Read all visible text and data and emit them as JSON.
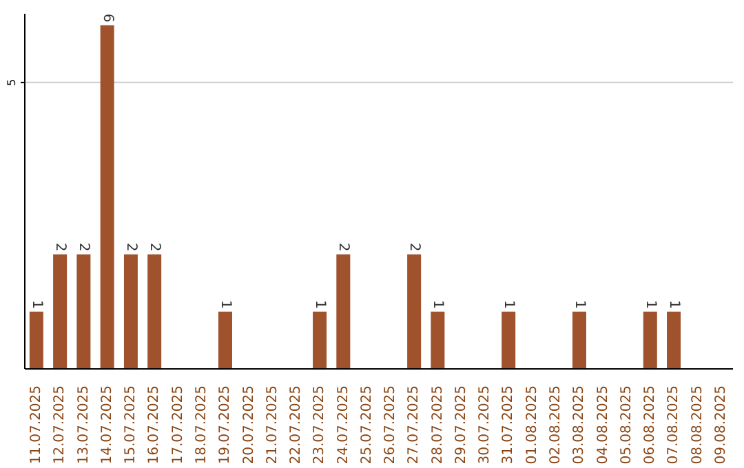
{
  "chart_data": {
    "type": "bar",
    "categories": [
      "11.07.2025",
      "12.07.2025",
      "13.07.2025",
      "14.07.2025",
      "15.07.2025",
      "16.07.2025",
      "17.07.2025",
      "18.07.2025",
      "19.07.2025",
      "20.07.2025",
      "21.07.2025",
      "22.07.2025",
      "23.07.2025",
      "24.07.2025",
      "25.07.2025",
      "26.07.2025",
      "27.07.2025",
      "28.07.2025",
      "29.07.2025",
      "30.07.2025",
      "31.07.2025",
      "01.08.2025",
      "02.08.2025",
      "03.08.2025",
      "04.08.2025",
      "05.08.2025",
      "06.08.2025",
      "07.08.2025",
      "08.08.2025",
      "09.08.2025"
    ],
    "values": [
      1,
      2,
      2,
      6,
      2,
      2,
      0,
      0,
      1,
      0,
      0,
      0,
      1,
      2,
      0,
      0,
      2,
      1,
      0,
      0,
      1,
      0,
      0,
      1,
      0,
      0,
      1,
      1,
      0,
      0
    ],
    "value_labels": [
      "1",
      "2",
      "2",
      "6",
      "2",
      "2",
      null,
      null,
      "1",
      null,
      null,
      null,
      "1",
      "2",
      null,
      null,
      "2",
      "1",
      null,
      null,
      "1",
      null,
      null,
      "1",
      null,
      null,
      "1",
      "1",
      null,
      null
    ],
    "color": "#a0522d",
    "ylim": [
      0,
      6.2
    ],
    "yticks": [
      5
    ],
    "grid": "y"
  }
}
